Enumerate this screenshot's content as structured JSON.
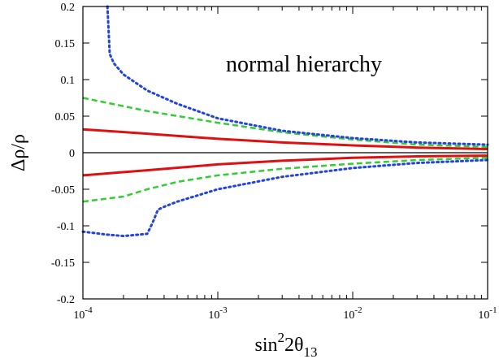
{
  "chart_data": {
    "type": "line",
    "title": "",
    "xscale": "log",
    "xlim": [
      0.0001,
      0.1
    ],
    "ylim": [
      -0.2,
      0.2
    ],
    "x_ticks": [
      {
        "value": 0.0001,
        "base": "10",
        "exp": "-4"
      },
      {
        "value": 0.001,
        "base": "10",
        "exp": "-3"
      },
      {
        "value": 0.01,
        "base": "10",
        "exp": "-2"
      },
      {
        "value": 0.1,
        "base": "10",
        "exp": "-1"
      }
    ],
    "y_ticks": [
      0.2,
      0.15,
      0.1,
      0.05,
      0,
      -0.05,
      -0.1,
      -0.15,
      -0.2
    ],
    "y_tick_labels": [
      "0.2",
      "0.15",
      "0.1",
      "0.05",
      "0",
      "-0.05",
      "-0.1",
      "-0.15",
      "-0.2"
    ],
    "xlabel": {
      "main": "sin",
      "sup": "2",
      "mid": "2θ",
      "sub": "13"
    },
    "ylabel": "Δρ/ρ",
    "annotation": "normal hierarchy",
    "grid": false,
    "zero_line": true,
    "series": [
      {
        "color": "#dd1111",
        "style": "solid",
        "x": [
          0.0001,
          0.0003,
          0.001,
          0.003,
          0.01,
          0.03,
          0.1
        ],
        "y": [
          0.032,
          0.026,
          0.019,
          0.014,
          0.01,
          0.007,
          0.005
        ]
      },
      {
        "color": "#dd1111",
        "style": "solid",
        "x": [
          0.0001,
          0.0003,
          0.001,
          0.003,
          0.01,
          0.03,
          0.1
        ],
        "y": [
          -0.031,
          -0.024,
          -0.016,
          -0.011,
          -0.007,
          -0.005,
          -0.004
        ]
      },
      {
        "color": "#33cc33",
        "style": "dashed",
        "x": [
          0.0001,
          0.0003,
          0.001,
          0.003,
          0.01,
          0.03,
          0.1
        ],
        "y": [
          0.075,
          0.057,
          0.041,
          0.028,
          0.018,
          0.011,
          0.008
        ]
      },
      {
        "color": "#33cc33",
        "style": "dashed",
        "x": [
          0.0001,
          0.0002,
          0.0003,
          0.0005,
          0.001,
          0.003,
          0.01,
          0.03,
          0.1
        ],
        "y": [
          -0.067,
          -0.06,
          -0.05,
          -0.04,
          -0.031,
          -0.022,
          -0.015,
          -0.01,
          -0.007
        ]
      },
      {
        "color": "#2244dd",
        "style": "dotted",
        "x": [
          0.000152,
          0.000158,
          0.00017,
          0.0002,
          0.0003,
          0.0005,
          0.001,
          0.003,
          0.01,
          0.03,
          0.1
        ],
        "y": [
          0.2,
          0.135,
          0.122,
          0.107,
          0.085,
          0.067,
          0.047,
          0.03,
          0.02,
          0.014,
          0.011
        ]
      },
      {
        "color": "#2244dd",
        "style": "dotted",
        "x": [
          0.0001,
          0.00015,
          0.0002,
          0.0003,
          0.00033,
          0.00036,
          0.0004,
          0.0005,
          0.001,
          0.003,
          0.01,
          0.03,
          0.1
        ],
        "y": [
          -0.108,
          -0.112,
          -0.114,
          -0.111,
          -0.095,
          -0.078,
          -0.074,
          -0.067,
          -0.05,
          -0.033,
          -0.021,
          -0.014,
          -0.01
        ]
      }
    ]
  }
}
